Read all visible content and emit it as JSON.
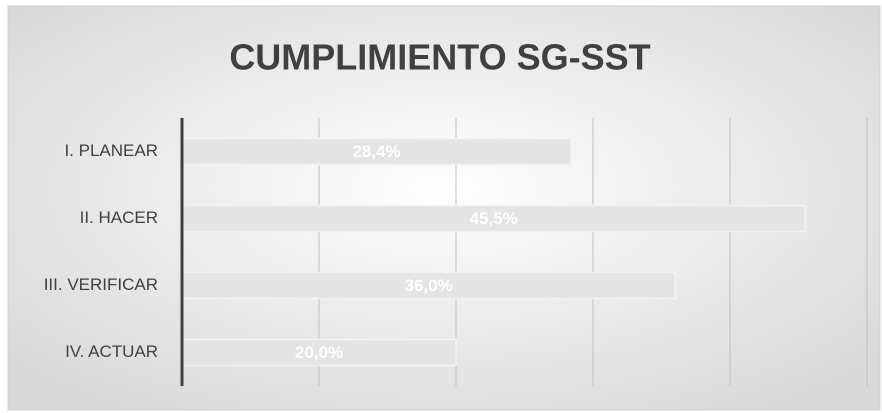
{
  "chart_data": {
    "type": "bar",
    "orientation": "horizontal",
    "title": "CUMPLIMIENTO SG-SST",
    "categories": [
      "I. PLANEAR",
      "II. HACER",
      "III. VERIFICAR",
      "IV. ACTUAR"
    ],
    "values": [
      28.4,
      45.5,
      36.0,
      20.0
    ],
    "value_labels": [
      "28,4%",
      "45,5%",
      "36,0%",
      "20,0%"
    ],
    "color": "#e4e4e4",
    "xlim": [
      0,
      50
    ],
    "xticks": [
      0,
      10,
      20,
      30,
      40,
      50
    ],
    "grid": true
  }
}
